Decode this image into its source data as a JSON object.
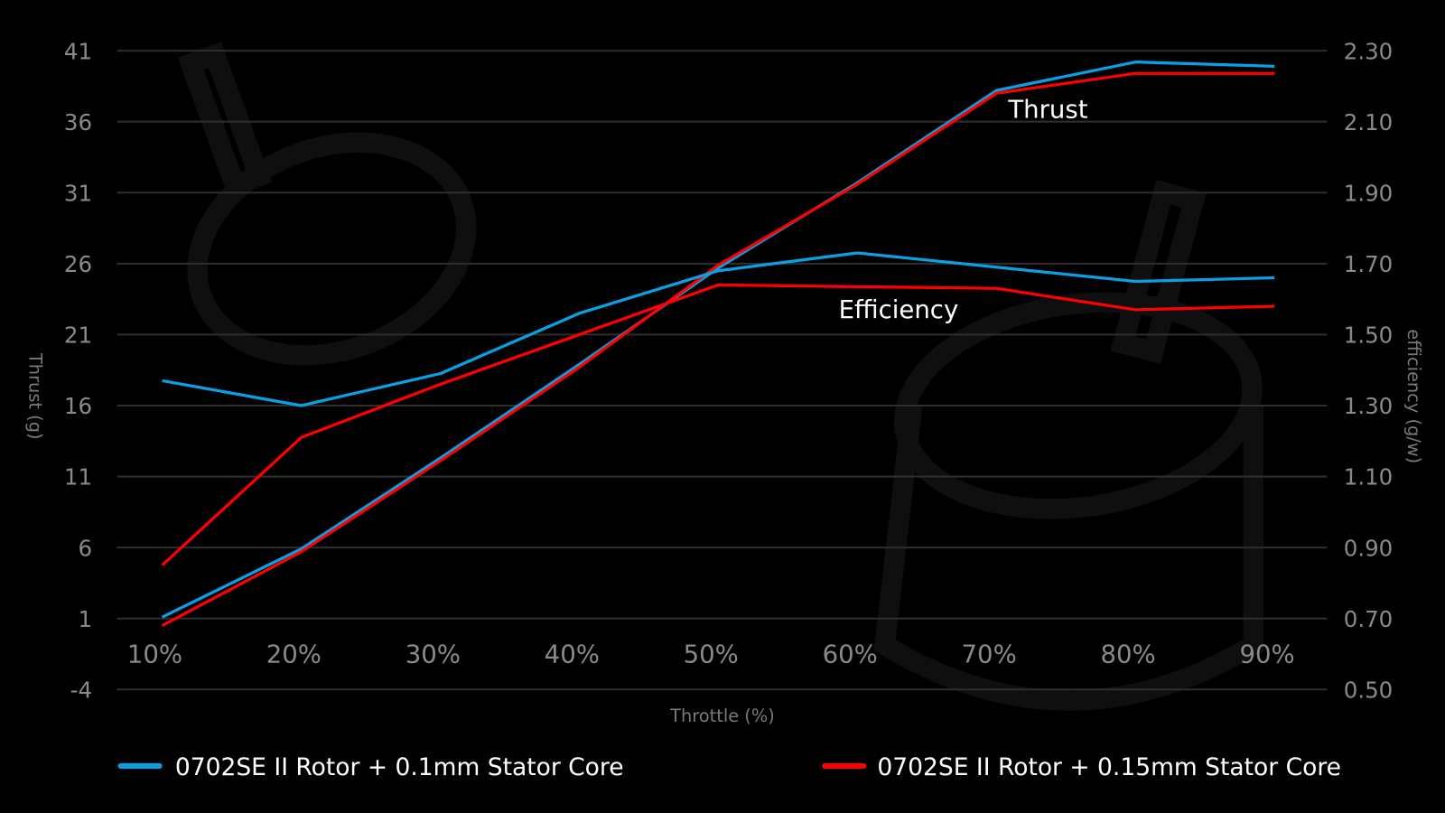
{
  "chart_data": {
    "type": "line",
    "xlabel": "Throttle (%)",
    "ylabel_left": "Thrust (g)",
    "ylabel_right": "efficiency (g/w)",
    "x": [
      10,
      20,
      30,
      40,
      50,
      60,
      70,
      80,
      90
    ],
    "x_tick_labels": [
      "10%",
      "20%",
      "30%",
      "40%",
      "50%",
      "60%",
      "70%",
      "80%",
      "90%"
    ],
    "y_left_ticks": [
      "41",
      "36",
      "31",
      "26",
      "21",
      "16",
      "11",
      "6",
      "1",
      "-4"
    ],
    "y_right_ticks": [
      "2.30",
      "2.10",
      "1.90",
      "1.70",
      "1.50",
      "1.30",
      "1.10",
      "0.90",
      "0.70",
      "0.50"
    ],
    "ylim_left": [
      -4,
      41
    ],
    "ylim_right": [
      0.5,
      2.3
    ],
    "grid": true,
    "legend_placement": "bottom",
    "annotations": {
      "thrust": "Thrust",
      "efficiency": "Efficiency"
    },
    "series": [
      {
        "name": "0702SE II Rotor + 0.1mm Stator Core",
        "metric": "thrust",
        "axis": "left",
        "color": "#0aa0e6",
        "values": [
          1.1,
          5.9,
          12.3,
          18.9,
          25.7,
          31.7,
          38.2,
          40.2,
          39.9
        ]
      },
      {
        "name": "0702SE II Rotor + 0.15mm Stator Core",
        "metric": "thrust",
        "axis": "left",
        "color": "#ff0000",
        "values": [
          0.5,
          5.7,
          12.1,
          18.7,
          25.9,
          31.6,
          38.0,
          39.4,
          39.4
        ]
      },
      {
        "name": "0702SE II Rotor + 0.1mm Stator Core",
        "metric": "efficiency",
        "axis": "right",
        "color": "#0aa0e6",
        "values": [
          1.37,
          1.3,
          1.39,
          1.56,
          1.68,
          1.73,
          1.69,
          1.65,
          1.66
        ]
      },
      {
        "name": "0702SE II Rotor + 0.15mm Stator Core",
        "metric": "efficiency",
        "axis": "right",
        "color": "#ff0000",
        "values": [
          0.85,
          1.21,
          1.36,
          1.5,
          1.64,
          1.635,
          1.63,
          1.57,
          1.58
        ]
      }
    ],
    "legend": [
      {
        "label": "0702SE II Rotor + 0.1mm Stator Core",
        "color": "#0aa0e6"
      },
      {
        "label": "0702SE II Rotor + 0.15mm Stator Core",
        "color": "#ff0000"
      }
    ]
  }
}
